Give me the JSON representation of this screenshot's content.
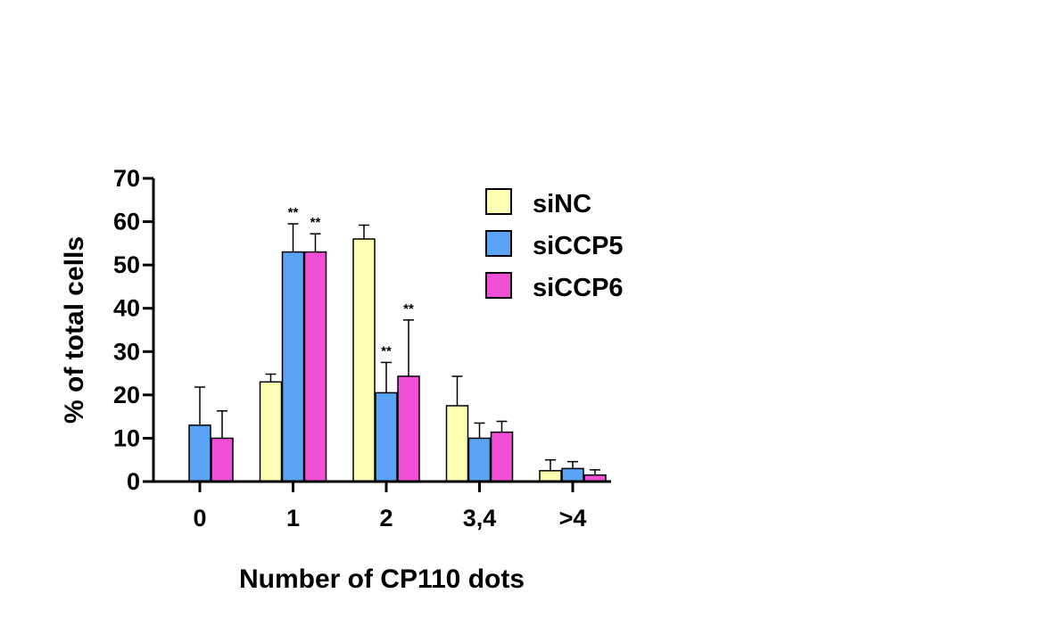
{
  "chart_data": {
    "type": "bar",
    "title": "",
    "xlabel": "Number of CP110 dots",
    "ylabel": "% of total cells",
    "ylim": [
      0,
      70
    ],
    "yticks": [
      "0",
      "10",
      "20",
      "30",
      "40",
      "50",
      "60",
      "70"
    ],
    "categories": [
      "0",
      "1",
      "2",
      "3,4",
      ">4"
    ],
    "grid": false,
    "legend_position": "top-right",
    "series": [
      {
        "name": "siNC",
        "color": "#ffffb3",
        "values": [
          0,
          23,
          56,
          17.5,
          2.5
        ],
        "errors": [
          0,
          1.8,
          3.2,
          6.8,
          2.5
        ]
      },
      {
        "name": "siCCP5",
        "color": "#5ba3f5",
        "values": [
          13,
          53,
          20.5,
          10,
          3
        ],
        "errors": [
          8.8,
          6.5,
          7,
          3.5,
          1.6
        ]
      },
      {
        "name": "siCCP6",
        "color": "#f04fd6",
        "values": [
          10,
          53,
          24.3,
          11.4,
          1.5
        ],
        "errors": [
          6.3,
          4.2,
          13,
          2.5,
          1.2
        ]
      }
    ],
    "annotations": [
      {
        "text": "**",
        "category": "1",
        "series": "siCCP5"
      },
      {
        "text": "**",
        "category": "1",
        "series": "siCCP6"
      },
      {
        "text": "**",
        "category": "2",
        "series": "siCCP5"
      },
      {
        "text": "**",
        "category": "2",
        "series": "siCCP6"
      }
    ]
  }
}
